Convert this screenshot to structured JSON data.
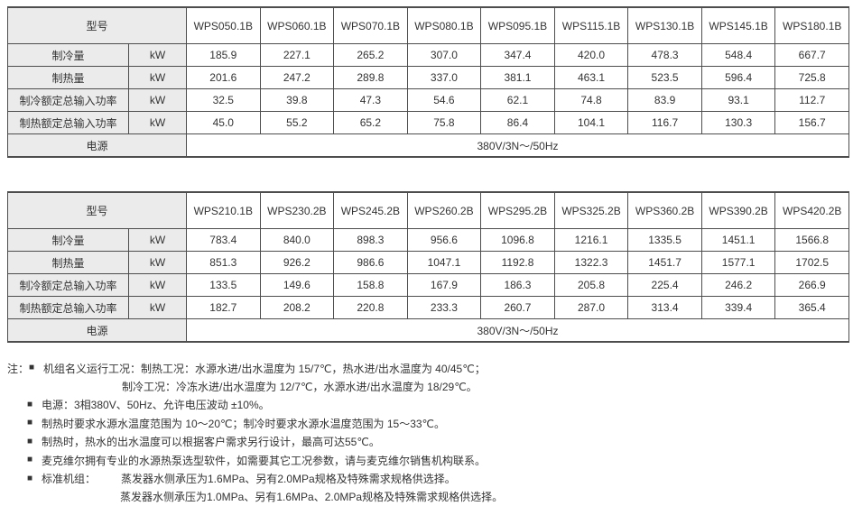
{
  "colors": {
    "cell_shading": "#ebebeb",
    "table_border": "#4d4d4d",
    "text": "#333333"
  },
  "tables": [
    {
      "header_label": "型号",
      "models": [
        "WPS050.1B",
        "WPS060.1B",
        "WPS070.1B",
        "WPS080.1B",
        "WPS095.1B",
        "WPS115.1B",
        "WPS130.1B",
        "WPS145.1B",
        "WPS180.1B"
      ],
      "rows": [
        {
          "label": "制冷量",
          "unit": "kW",
          "values": [
            "185.9",
            "227.1",
            "265.2",
            "307.0",
            "347.4",
            "420.0",
            "478.3",
            "548.4",
            "667.7"
          ]
        },
        {
          "label": "制热量",
          "unit": "kW",
          "values": [
            "201.6",
            "247.2",
            "289.8",
            "337.0",
            "381.1",
            "463.1",
            "523.5",
            "596.4",
            "725.8"
          ]
        },
        {
          "label": "制冷额定总输入功率",
          "unit": "kW",
          "values": [
            "32.5",
            "39.8",
            "47.3",
            "54.6",
            "62.1",
            "74.8",
            "83.9",
            "93.1",
            "112.7"
          ]
        },
        {
          "label": "制热额定总输入功率",
          "unit": "kW",
          "values": [
            "45.0",
            "55.2",
            "65.2",
            "75.8",
            "86.4",
            "104.1",
            "116.7",
            "130.3",
            "156.7"
          ]
        }
      ],
      "power": {
        "label": "电源",
        "value": "380V/3N～/50Hz"
      }
    },
    {
      "header_label": "型号",
      "models": [
        "WPS210.1B",
        "WPS230.2B",
        "WPS245.2B",
        "WPS260.2B",
        "WPS295.2B",
        "WPS325.2B",
        "WPS360.2B",
        "WPS390.2B",
        "WPS420.2B"
      ],
      "rows": [
        {
          "label": "制冷量",
          "unit": "kW",
          "values": [
            "783.4",
            "840.0",
            "898.3",
            "956.6",
            "1096.8",
            "1216.1",
            "1335.5",
            "1451.1",
            "1566.8"
          ]
        },
        {
          "label": "制热量",
          "unit": "kW",
          "values": [
            "851.3",
            "926.2",
            "986.6",
            "1047.1",
            "1192.8",
            "1322.3",
            "1451.7",
            "1577.1",
            "1702.5"
          ]
        },
        {
          "label": "制冷额定总输入功率",
          "unit": "kW",
          "values": [
            "133.5",
            "149.6",
            "158.8",
            "167.9",
            "186.3",
            "205.8",
            "225.4",
            "246.2",
            "266.9"
          ]
        },
        {
          "label": "制热额定总输入功率",
          "unit": "kW",
          "values": [
            "182.7",
            "208.2",
            "220.8",
            "233.3",
            "260.7",
            "287.0",
            "313.4",
            "339.4",
            "365.4"
          ]
        }
      ],
      "power": {
        "label": "电源",
        "value": "380V/3N～/50Hz"
      }
    }
  ],
  "notes": [
    {
      "lead": "注：",
      "bullet": true,
      "text": "机组名义运行工况：制热工况：水源水进/出水温度为 15/7℃，热水进/出水温度为 40/45℃；"
    },
    {
      "indent": 105,
      "text": "制冷工况：冷冻水进/出水温度为 12/7℃，水源水进/出水温度为 18/29℃。"
    },
    {
      "bullet": true,
      "text": "电源：3相380V、50Hz、允许电压波动 ±10%。"
    },
    {
      "bullet": true,
      "text": "制热时要求水源水温度范围为 10～20℃；制冷时要求水源水温度范围为 15～33℃。"
    },
    {
      "bullet": true,
      "text": "制热时，热水的出水温度可以根据客户需求另行设计，最高可达55℃。"
    },
    {
      "bullet": true,
      "text": "麦克维尔拥有专业的水源热泵选型软件，如需要其它工况参数，请与麦克维尔销售机构联系。"
    },
    {
      "bullet": true,
      "label": "标准机组：",
      "text": "蒸发器水侧承压为1.6MPa、另有2.0MPa规格及特殊需求规格供选择。"
    },
    {
      "indent": 103,
      "text": "蒸发器水侧承压为1.0MPa、另有1.6MPa、2.0MPa规格及特殊需求规格供选择。"
    }
  ]
}
